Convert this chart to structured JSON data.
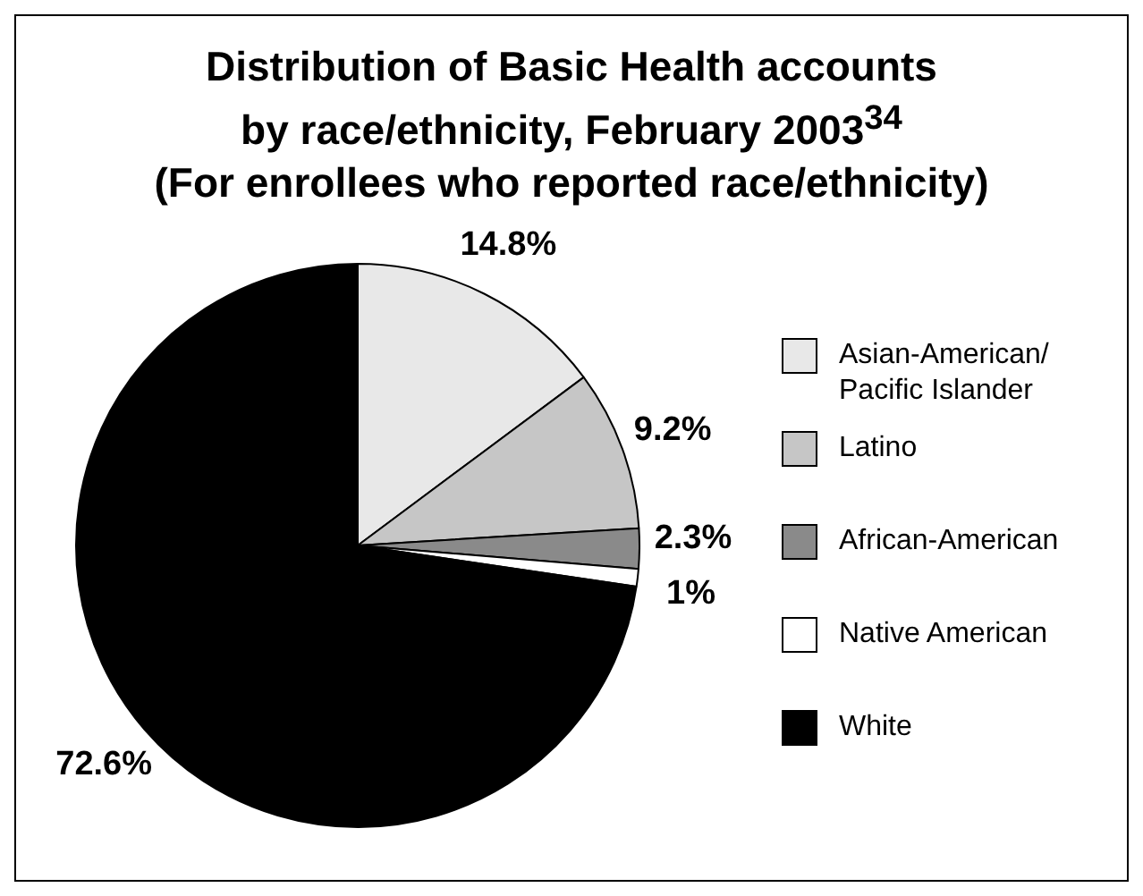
{
  "chart_data": {
    "type": "pie",
    "title": "Distribution of Basic Health accounts by race/ethnicity, February 2003$^{34}$",
    "subtitle": "(For enrollees who reported race/ethnicity)",
    "categories": [
      "Asian-American/ Pacific Islander",
      "Latino",
      "African-American",
      "Native American",
      "White"
    ],
    "values": [
      14.8,
      9.2,
      2.3,
      1,
      72.6
    ],
    "colors": [
      "#e8e8e8",
      "#c6c6c6",
      "#8a8a8a",
      "#ffffff",
      "#000000"
    ],
    "value_labels": [
      "14.8%",
      "9.2%",
      "2.3%",
      "1%",
      "72.6%"
    ],
    "legend": "right"
  }
}
